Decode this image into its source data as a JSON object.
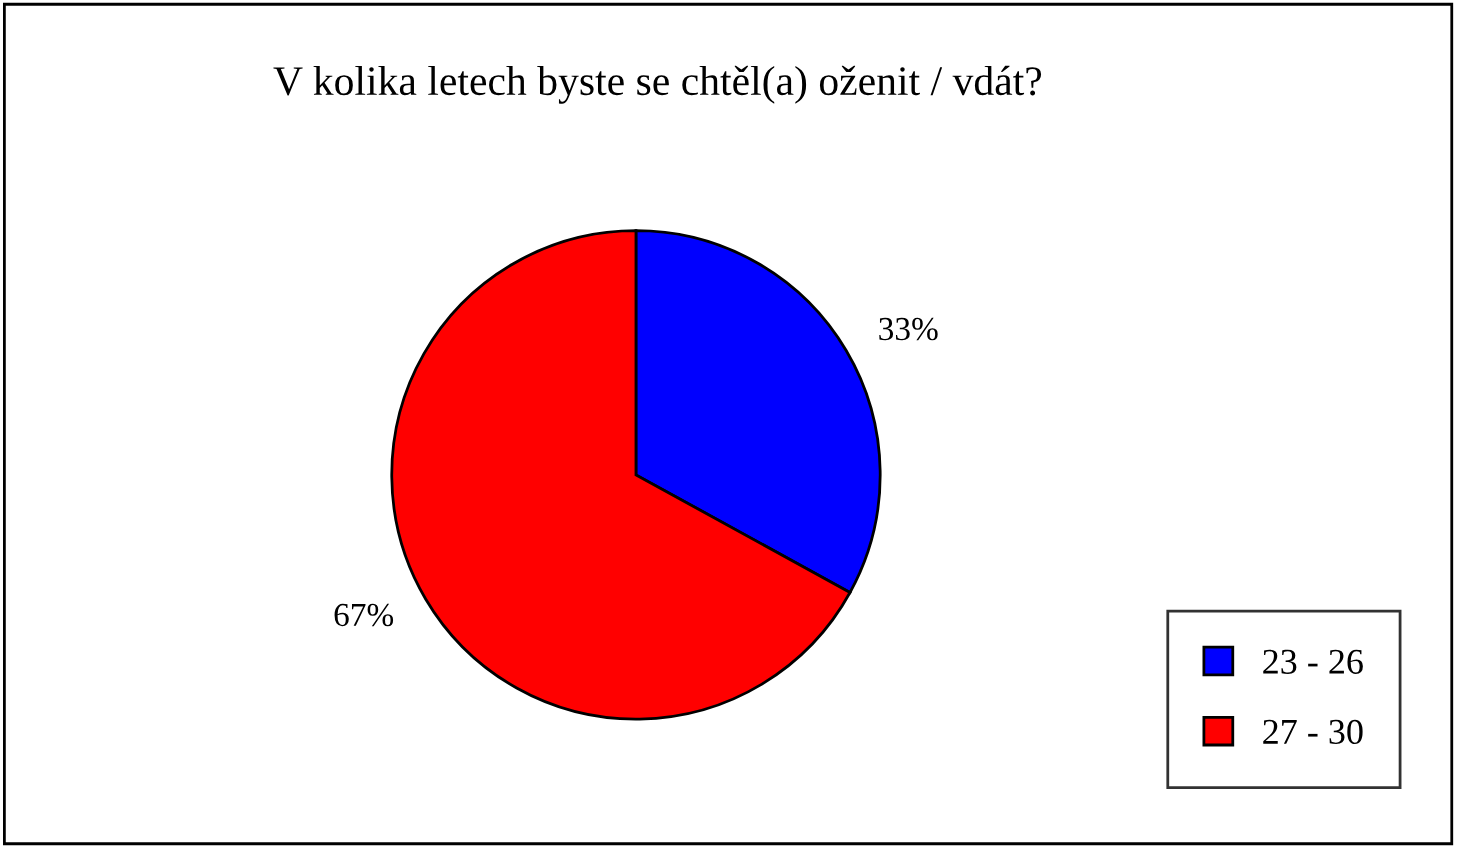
{
  "chart_data": {
    "type": "pie",
    "title": "V kolika letech byste se chtěl(a) oženit / vdát?",
    "categories": [
      "23 - 26",
      "27 - 30"
    ],
    "values": [
      33,
      67
    ],
    "colors": [
      "#0000ff",
      "#ff0000"
    ],
    "value_labels": [
      "33%",
      "67%"
    ],
    "legend": "bottom right"
  }
}
